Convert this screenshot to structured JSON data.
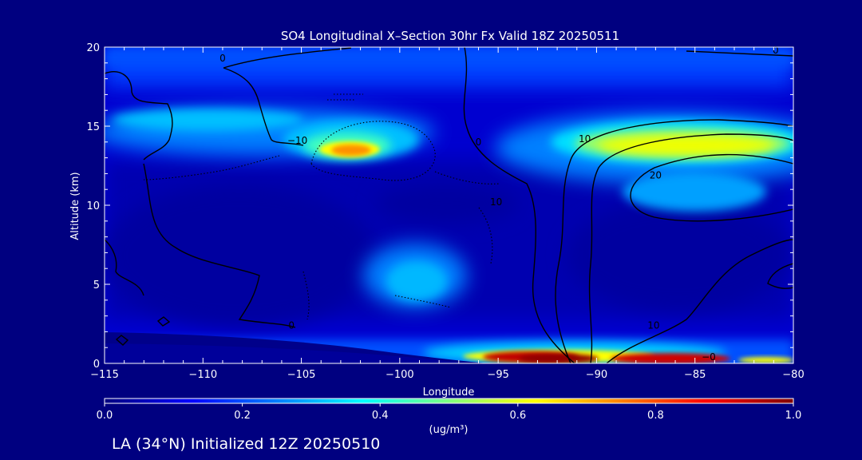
{
  "chart_data": {
    "type": "heatmap",
    "title": "SO4 Longitudinal X–Section 30hr  Fx Valid 18Z 20250511",
    "xlabel": "Longitude",
    "ylabel": "Altitude (km)",
    "xlim": [
      -115,
      -80
    ],
    "ylim": [
      0,
      20
    ],
    "x_ticks": [
      -115,
      -110,
      -105,
      -100,
      -95,
      -90,
      -85,
      -80
    ],
    "y_ticks": [
      0,
      5,
      10,
      15,
      20
    ],
    "colorbar": {
      "range": [
        0.0,
        1.0
      ],
      "ticks": [
        0.0,
        0.2,
        0.4,
        0.6,
        0.8,
        1.0
      ],
      "tick_labels": [
        "0.0",
        "0.2",
        "0.4",
        "0.6",
        "0.8",
        "1.0"
      ],
      "unit_label": "(ug/m³)",
      "colormap": [
        "#00007f",
        "#0000ff",
        "#0080ff",
        "#00ffff",
        "#80ff80",
        "#ffff00",
        "#ff8000",
        "#ff0000",
        "#800000"
      ]
    },
    "grid": false,
    "features": [
      {
        "name": "upper-west-band",
        "lon": -107,
        "alt": 14.5,
        "value": 0.4
      },
      {
        "name": "upper-west-max",
        "lon": -102.5,
        "alt": 13.5,
        "value": 0.7
      },
      {
        "name": "upper-east-band",
        "lon": -87,
        "alt": 13.8,
        "value": 0.55
      },
      {
        "name": "mid-level-max",
        "lon": -98.5,
        "alt": 5.0,
        "value": 0.38
      },
      {
        "name": "surface-max-west",
        "lon": -93,
        "alt": 0.4,
        "value": 1.0
      },
      {
        "name": "surface-max-east",
        "lon": -86,
        "alt": 0.3,
        "value": 0.85
      }
    ],
    "contour_labels": [
      {
        "text": "0",
        "lon": -109.0,
        "alt": 19.1
      },
      {
        "text": "−10",
        "lon": -105.2,
        "alt": 13.9
      },
      {
        "text": "0",
        "lon": -96.0,
        "alt": 13.8
      },
      {
        "text": "10",
        "lon": -90.6,
        "alt": 14.0
      },
      {
        "text": "20",
        "lon": -87.0,
        "alt": 11.7
      },
      {
        "text": "10",
        "lon": -95.1,
        "alt": 10.0
      },
      {
        "text": "10",
        "lon": -87.1,
        "alt": 2.2
      },
      {
        "text": "0",
        "lon": -105.5,
        "alt": 2.2
      },
      {
        "text": "0",
        "lon": -80.9,
        "alt": 19.6
      },
      {
        "text": "−0",
        "lon": -84.3,
        "alt": 0.2
      }
    ]
  },
  "footer": {
    "caption": "LA (34°N) Initialized 12Z 20250510"
  }
}
